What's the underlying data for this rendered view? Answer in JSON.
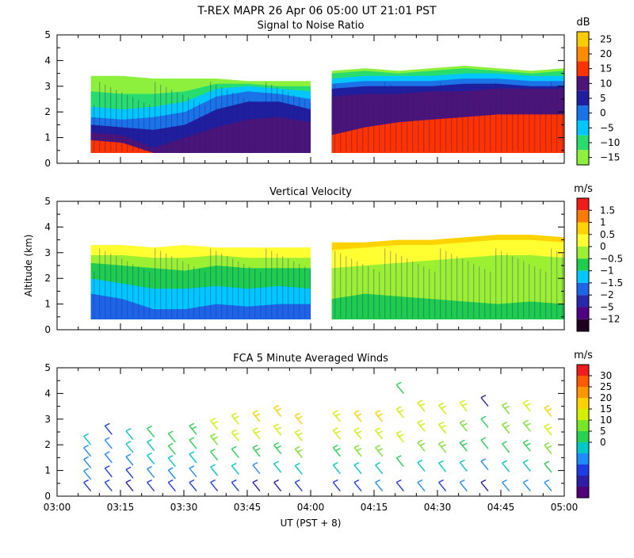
{
  "header": {
    "title": "T-REX  MAPR 26 Apr 06  05:00 UT  21:01  PST"
  },
  "chart_data": [
    {
      "type": "heatmap",
      "title": "Signal to Noise Ratio",
      "unit": "dB",
      "ylabel": "",
      "ylim": [
        0,
        5
      ],
      "yticks": [
        "0",
        "1",
        "2",
        "3",
        "4",
        "5"
      ],
      "colorbar_ticks": [
        "25",
        "20",
        "15",
        "10",
        "5",
        "0",
        "−5",
        "−10",
        "−15"
      ],
      "colors": [
        "#f8cc00",
        "#ff8c00",
        "#ff3300",
        "#4a1478",
        "#1e1e9e",
        "#1a74e8",
        "#00c8ff",
        "#28dc6e",
        "#8cf03c"
      ],
      "segments": [
        {
          "x_start": "03:08",
          "x_end": "04:00",
          "top_km": [
            3.4,
            3.4,
            3.3,
            3.3,
            3.3,
            3.2,
            3.2,
            3.2
          ],
          "layers": [
            {
              "color_index": 2,
              "top_km": [
                0.9,
                0.8,
                0.2,
                0.2,
                0.2,
                0.2,
                0.2,
                0.2
              ]
            },
            {
              "color_index": 3,
              "top_km": [
                1.2,
                1.1,
                0.6,
                1.0,
                1.4,
                1.7,
                1.8,
                1.6
              ]
            },
            {
              "color_index": 4,
              "top_km": [
                1.5,
                1.4,
                1.3,
                1.5,
                2.1,
                2.4,
                2.4,
                2.1
              ]
            },
            {
              "color_index": 5,
              "top_km": [
                1.8,
                1.7,
                1.8,
                2.0,
                2.6,
                2.8,
                2.7,
                2.5
              ]
            },
            {
              "color_index": 6,
              "top_km": [
                2.2,
                2.1,
                2.2,
                2.4,
                2.9,
                3.0,
                2.9,
                2.8
              ]
            },
            {
              "color_index": 7,
              "top_km": [
                2.8,
                2.7,
                2.7,
                2.8,
                3.1,
                3.1,
                3.0,
                3.0
              ]
            },
            {
              "color_index": 8,
              "top_km": [
                3.4,
                3.4,
                3.3,
                3.3,
                3.3,
                3.2,
                3.2,
                3.2
              ]
            }
          ]
        },
        {
          "x_start": "04:05",
          "x_end": "05:00",
          "top_km": [
            3.6,
            3.7,
            3.6,
            3.7,
            3.8,
            3.7,
            3.6,
            3.7
          ],
          "layers": [
            {
              "color_index": 2,
              "top_km": [
                1.1,
                1.4,
                1.6,
                1.7,
                1.8,
                1.9,
                1.9,
                1.9
              ]
            },
            {
              "color_index": 3,
              "top_km": [
                2.6,
                2.7,
                2.7,
                2.8,
                2.8,
                2.9,
                2.9,
                2.9
              ]
            },
            {
              "color_index": 4,
              "top_km": [
                2.9,
                3.0,
                3.0,
                3.0,
                3.1,
                3.1,
                3.0,
                3.0
              ]
            },
            {
              "color_index": 5,
              "top_km": [
                3.1,
                3.2,
                3.2,
                3.2,
                3.3,
                3.3,
                3.2,
                3.2
              ]
            },
            {
              "color_index": 6,
              "top_km": [
                3.3,
                3.4,
                3.4,
                3.4,
                3.5,
                3.5,
                3.4,
                3.4
              ]
            },
            {
              "color_index": 7,
              "top_km": [
                3.5,
                3.6,
                3.5,
                3.6,
                3.7,
                3.6,
                3.5,
                3.6
              ]
            },
            {
              "color_index": 8,
              "top_km": [
                3.6,
                3.7,
                3.6,
                3.7,
                3.8,
                3.7,
                3.6,
                3.7
              ]
            }
          ]
        }
      ]
    },
    {
      "type": "heatmap",
      "title": "Vertical Velocity",
      "unit": "m/s",
      "ylabel": "Altitude (km)",
      "ylim": [
        0,
        5
      ],
      "yticks": [
        "0",
        "1",
        "2",
        "3",
        "4",
        "5"
      ],
      "colorbar_ticks": [
        "1.5",
        "1",
        "0.5",
        "0",
        "−0.5",
        "−1",
        "−1.5",
        "−2",
        "−5",
        "−12"
      ],
      "colors": [
        "#ee1c1c",
        "#ff7a00",
        "#ffd200",
        "#ffff32",
        "#9cf032",
        "#1ecd4b",
        "#00c8ff",
        "#1e64e6",
        "#2828aa",
        "#500082",
        "#200020"
      ],
      "segments": [
        {
          "x_start": "03:08",
          "x_end": "04:00",
          "top_km": [
            3.3,
            3.3,
            3.2,
            3.3,
            3.2,
            3.2,
            3.2,
            3.2
          ],
          "layers": [
            {
              "color_index": 7,
              "top_km": [
                1.4,
                1.2,
                0.8,
                0.8,
                1.0,
                0.9,
                1.0,
                1.0
              ]
            },
            {
              "color_index": 6,
              "top_km": [
                2.0,
                1.8,
                1.6,
                1.6,
                1.7,
                1.6,
                1.7,
                1.6
              ]
            },
            {
              "color_index": 5,
              "top_km": [
                2.6,
                2.5,
                2.4,
                2.3,
                2.5,
                2.4,
                2.4,
                2.4
              ]
            },
            {
              "color_index": 4,
              "top_km": [
                2.9,
                2.9,
                2.8,
                2.8,
                2.9,
                2.8,
                2.8,
                2.8
              ]
            },
            {
              "color_index": 3,
              "top_km": [
                3.3,
                3.3,
                3.2,
                3.3,
                3.2,
                3.2,
                3.2,
                3.2
              ]
            }
          ]
        },
        {
          "x_start": "04:05",
          "x_end": "05:00",
          "top_km": [
            3.4,
            3.4,
            3.5,
            3.5,
            3.6,
            3.7,
            3.7,
            3.6
          ],
          "layers": [
            {
              "color_index": 5,
              "top_km": [
                1.2,
                1.4,
                1.3,
                1.2,
                1.1,
                1.0,
                1.1,
                1.0
              ]
            },
            {
              "color_index": 4,
              "top_km": [
                2.4,
                2.5,
                2.6,
                2.7,
                2.8,
                2.9,
                2.9,
                2.8
              ]
            },
            {
              "color_index": 3,
              "top_km": [
                3.1,
                3.2,
                3.3,
                3.3,
                3.4,
                3.5,
                3.5,
                3.4
              ]
            },
            {
              "color_index": 2,
              "top_km": [
                3.4,
                3.4,
                3.5,
                3.5,
                3.6,
                3.7,
                3.7,
                3.6
              ]
            }
          ]
        }
      ]
    },
    {
      "type": "scatter",
      "title": "FCA 5 Minute Averaged Winds",
      "unit": "m/s",
      "xlabel": "UT  (PST + 8)",
      "ylabel": "",
      "ylim": [
        0,
        5
      ],
      "yticks": [
        "0",
        "1",
        "2",
        "3",
        "4",
        "5"
      ],
      "xticks": [
        "03:00",
        "03:15",
        "03:30",
        "03:45",
        "04:00",
        "04:15",
        "04:30",
        "04:45",
        "05:00"
      ],
      "colorbar_ticks": [
        "30",
        "25",
        "20",
        "15",
        "10",
        "5",
        "0"
      ],
      "colors": [
        "#ee1c1c",
        "#ff5a00",
        "#ff9600",
        "#ffd200",
        "#d2f000",
        "#78e628",
        "#28d250",
        "#00c8c8",
        "#1e8cff",
        "#1e3ce6",
        "#2d1ea5",
        "#500078"
      ],
      "speed_max": 30,
      "profiles": [
        {
          "time": "03:08",
          "speed_ms": [
            6,
            7,
            8,
            9,
            10
          ],
          "top_km": 2.0
        },
        {
          "time": "03:13",
          "speed_ms": [
            5,
            6,
            8,
            9,
            6
          ],
          "top_km": 2.4
        },
        {
          "time": "03:18",
          "speed_ms": [
            4,
            6,
            9,
            11,
            12
          ],
          "top_km": 2.2
        },
        {
          "time": "03:23",
          "speed_ms": [
            5,
            8,
            10,
            12,
            13
          ],
          "top_km": 2.3
        },
        {
          "time": "03:28",
          "speed_ms": [
            6,
            9,
            12,
            13,
            14
          ],
          "top_km": 2.1
        },
        {
          "time": "03:33",
          "speed_ms": [
            5,
            9,
            12,
            14,
            15
          ],
          "top_km": 2.4
        },
        {
          "time": "03:38",
          "speed_ms": [
            6,
            10,
            13,
            16,
            18
          ],
          "top_km": 2.6
        },
        {
          "time": "03:43",
          "speed_ms": [
            5,
            10,
            14,
            18,
            20
          ],
          "top_km": 2.8
        },
        {
          "time": "03:48",
          "speed_ms": [
            4,
            9,
            15,
            19,
            22
          ],
          "top_km": 2.9
        },
        {
          "time": "03:53",
          "speed_ms": [
            4,
            10,
            15,
            20,
            23
          ],
          "top_km": 3.1
        },
        {
          "time": "03:58",
          "speed_ms": [
            5,
            11,
            16,
            20,
            22
          ],
          "top_km": 2.8
        },
        {
          "time": "04:07",
          "speed_ms": [
            5,
            11,
            15,
            18,
            20
          ],
          "top_km": 2.9
        },
        {
          "time": "04:12",
          "speed_ms": [
            6,
            12,
            16,
            19,
            21
          ],
          "top_km": 2.9
        },
        {
          "time": "04:17",
          "speed_ms": [
            7,
            12,
            17,
            20,
            22
          ],
          "top_km": 2.9
        },
        {
          "time": "04:22",
          "speed_ms": [
            6,
            13,
            18,
            20,
            14
          ],
          "top_km": 4.0
        },
        {
          "time": "04:27",
          "speed_ms": [
            7,
            12,
            17,
            19,
            18
          ],
          "top_km": 3.3
        },
        {
          "time": "04:32",
          "speed_ms": [
            6,
            12,
            16,
            18,
            19
          ],
          "top_km": 3.2
        },
        {
          "time": "04:37",
          "speed_ms": [
            7,
            12,
            15,
            17,
            19
          ],
          "top_km": 3.3
        },
        {
          "time": "04:42",
          "speed_ms": [
            4,
            9,
            13,
            14,
            3
          ],
          "top_km": 3.5
        },
        {
          "time": "04:47",
          "speed_ms": [
            7,
            12,
            14,
            16,
            17
          ],
          "top_km": 3.2
        },
        {
          "time": "04:52",
          "speed_ms": [
            8,
            12,
            15,
            17,
            18
          ],
          "top_km": 3.3
        },
        {
          "time": "04:57",
          "speed_ms": [
            8,
            13,
            16,
            18,
            21
          ],
          "top_km": 3.1
        }
      ]
    }
  ]
}
